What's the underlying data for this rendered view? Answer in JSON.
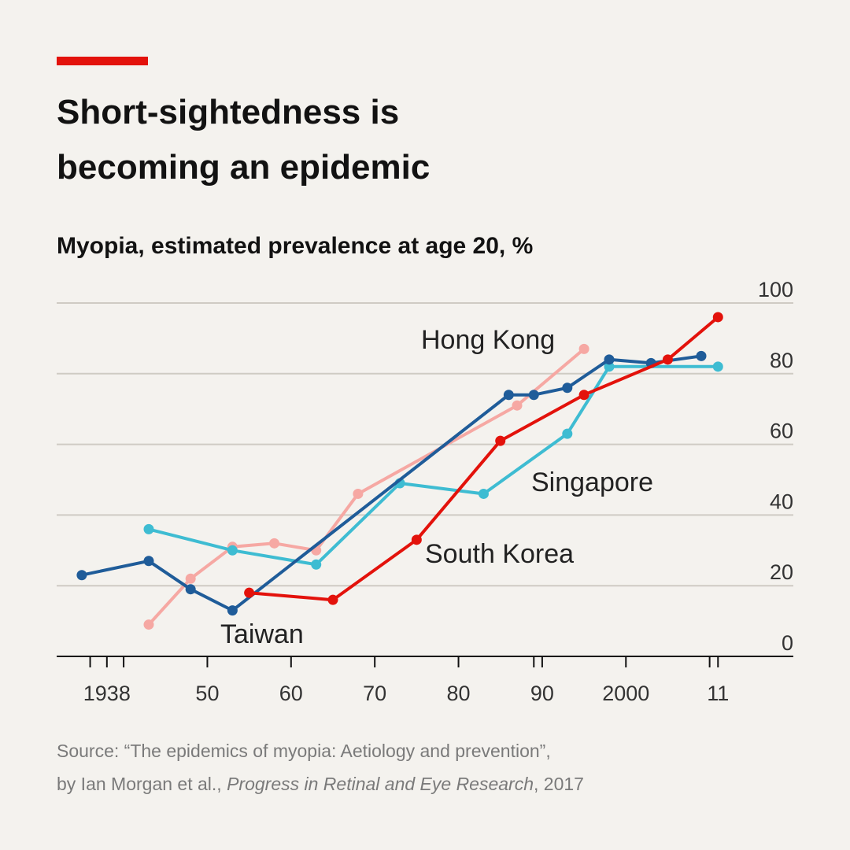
{
  "header": {
    "title_line1": "Short-sightedness is",
    "title_line2": "becoming an epidemic",
    "subtitle": "Myopia, estimated prevalence at age 20, %"
  },
  "source": {
    "line1": "Source: “The epidemics of myopia: Aetiology and prevention”,",
    "line2_prefix": "by Ian Morgan et al.,",
    "line2_journal": "Progress in Retinal and Eye Research",
    "line2_suffix": ", 2017"
  },
  "colors": {
    "accent": "#e3120b",
    "gridline": "#cfcbc4",
    "axis": "#121212"
  },
  "chart_data": {
    "type": "line",
    "xlim": [
      1932,
      2020
    ],
    "ylim": [
      0,
      100
    ],
    "x_ticks": [
      {
        "value": 1938,
        "label": "1938"
      },
      {
        "value": 1950,
        "label": "50"
      },
      {
        "value": 1960,
        "label": "60"
      },
      {
        "value": 1970,
        "label": "70"
      },
      {
        "value": 1980,
        "label": "80"
      },
      {
        "value": 1990,
        "label": "90"
      },
      {
        "value": 2000,
        "label": "2000"
      },
      {
        "value": 2011,
        "label": "11"
      }
    ],
    "x_minor_ticks": [
      1936,
      1940,
      1989,
      2010
    ],
    "y_ticks": [
      0,
      20,
      40,
      60,
      80,
      100
    ],
    "y_axis_position": "right",
    "grid": true,
    "legend": "direct labels",
    "series": [
      {
        "name": "Hong Kong",
        "color": "#f6a8a3",
        "points": [
          [
            1943,
            9
          ],
          [
            1948,
            22
          ],
          [
            1953,
            31
          ],
          [
            1958,
            32
          ],
          [
            1963,
            30
          ],
          [
            1968,
            46
          ],
          [
            1987,
            71
          ],
          [
            1995,
            87
          ]
        ]
      },
      {
        "name": "Singapore",
        "color": "#3ebcd2",
        "points": [
          [
            1943,
            36
          ],
          [
            1953,
            30
          ],
          [
            1963,
            26
          ],
          [
            1973,
            49
          ],
          [
            1983,
            46
          ],
          [
            1993,
            63
          ],
          [
            1998,
            82
          ],
          [
            2011,
            82
          ]
        ]
      },
      {
        "name": "Taiwan",
        "color": "#1f5c99",
        "points": [
          [
            1935,
            23
          ],
          [
            1943,
            27
          ],
          [
            1948,
            19
          ],
          [
            1953,
            13
          ],
          [
            1986,
            74
          ],
          [
            1989,
            74
          ],
          [
            1993,
            76
          ],
          [
            1998,
            84
          ],
          [
            2003,
            83
          ],
          [
            2009,
            85
          ]
        ]
      },
      {
        "name": "South Korea",
        "color": "#e3120b",
        "points": [
          [
            1955,
            18
          ],
          [
            1965,
            16
          ],
          [
            1975,
            33
          ],
          [
            1985,
            61
          ],
          [
            1995,
            74
          ],
          [
            2005,
            84
          ],
          [
            2011,
            96
          ]
        ]
      }
    ],
    "annotations": [
      {
        "text": "Hong Kong",
        "series": "Hong Kong"
      },
      {
        "text": "Singapore",
        "series": "Singapore"
      },
      {
        "text": "South Korea",
        "series": "South Korea"
      },
      {
        "text": "Taiwan",
        "series": "Taiwan"
      }
    ]
  }
}
